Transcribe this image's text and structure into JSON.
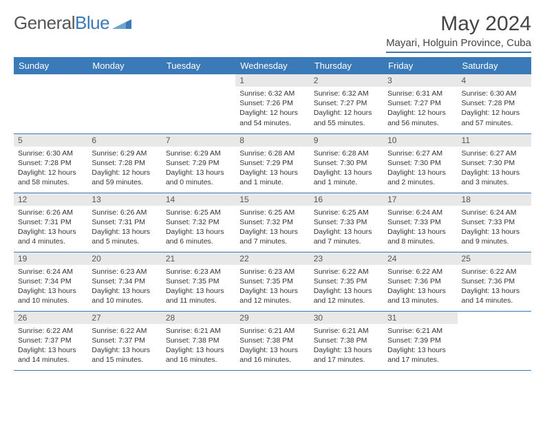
{
  "logo": {
    "part1": "General",
    "part2": "Blue"
  },
  "title": "May 2024",
  "subtitle": "Mayari, Holguin Province, Cuba",
  "columns": [
    "Sunday",
    "Monday",
    "Tuesday",
    "Wednesday",
    "Thursday",
    "Friday",
    "Saturday"
  ],
  "colors": {
    "accent": "#3a7ab8",
    "header_bg": "#3a7ab8",
    "header_fg": "#ffffff",
    "daynum_bg": "#e8e8e8",
    "text": "#333333",
    "background": "#ffffff"
  },
  "typography": {
    "body_font": "Arial",
    "title_size_pt": 22,
    "cell_size_pt": 8
  },
  "layout": {
    "cols": 7,
    "rows": 5,
    "first_weekday_index": 3
  },
  "weeks": [
    [
      {
        "empty": true
      },
      {
        "empty": true
      },
      {
        "empty": true
      },
      {
        "n": "1",
        "sr": "Sunrise: 6:32 AM",
        "ss": "Sunset: 7:26 PM",
        "dl1": "Daylight: 12 hours",
        "dl2": "and 54 minutes."
      },
      {
        "n": "2",
        "sr": "Sunrise: 6:32 AM",
        "ss": "Sunset: 7:27 PM",
        "dl1": "Daylight: 12 hours",
        "dl2": "and 55 minutes."
      },
      {
        "n": "3",
        "sr": "Sunrise: 6:31 AM",
        "ss": "Sunset: 7:27 PM",
        "dl1": "Daylight: 12 hours",
        "dl2": "and 56 minutes."
      },
      {
        "n": "4",
        "sr": "Sunrise: 6:30 AM",
        "ss": "Sunset: 7:28 PM",
        "dl1": "Daylight: 12 hours",
        "dl2": "and 57 minutes."
      }
    ],
    [
      {
        "n": "5",
        "sr": "Sunrise: 6:30 AM",
        "ss": "Sunset: 7:28 PM",
        "dl1": "Daylight: 12 hours",
        "dl2": "and 58 minutes."
      },
      {
        "n": "6",
        "sr": "Sunrise: 6:29 AM",
        "ss": "Sunset: 7:28 PM",
        "dl1": "Daylight: 12 hours",
        "dl2": "and 59 minutes."
      },
      {
        "n": "7",
        "sr": "Sunrise: 6:29 AM",
        "ss": "Sunset: 7:29 PM",
        "dl1": "Daylight: 13 hours",
        "dl2": "and 0 minutes."
      },
      {
        "n": "8",
        "sr": "Sunrise: 6:28 AM",
        "ss": "Sunset: 7:29 PM",
        "dl1": "Daylight: 13 hours",
        "dl2": "and 1 minute."
      },
      {
        "n": "9",
        "sr": "Sunrise: 6:28 AM",
        "ss": "Sunset: 7:30 PM",
        "dl1": "Daylight: 13 hours",
        "dl2": "and 1 minute."
      },
      {
        "n": "10",
        "sr": "Sunrise: 6:27 AM",
        "ss": "Sunset: 7:30 PM",
        "dl1": "Daylight: 13 hours",
        "dl2": "and 2 minutes."
      },
      {
        "n": "11",
        "sr": "Sunrise: 6:27 AM",
        "ss": "Sunset: 7:30 PM",
        "dl1": "Daylight: 13 hours",
        "dl2": "and 3 minutes."
      }
    ],
    [
      {
        "n": "12",
        "sr": "Sunrise: 6:26 AM",
        "ss": "Sunset: 7:31 PM",
        "dl1": "Daylight: 13 hours",
        "dl2": "and 4 minutes."
      },
      {
        "n": "13",
        "sr": "Sunrise: 6:26 AM",
        "ss": "Sunset: 7:31 PM",
        "dl1": "Daylight: 13 hours",
        "dl2": "and 5 minutes."
      },
      {
        "n": "14",
        "sr": "Sunrise: 6:25 AM",
        "ss": "Sunset: 7:32 PM",
        "dl1": "Daylight: 13 hours",
        "dl2": "and 6 minutes."
      },
      {
        "n": "15",
        "sr": "Sunrise: 6:25 AM",
        "ss": "Sunset: 7:32 PM",
        "dl1": "Daylight: 13 hours",
        "dl2": "and 7 minutes."
      },
      {
        "n": "16",
        "sr": "Sunrise: 6:25 AM",
        "ss": "Sunset: 7:33 PM",
        "dl1": "Daylight: 13 hours",
        "dl2": "and 7 minutes."
      },
      {
        "n": "17",
        "sr": "Sunrise: 6:24 AM",
        "ss": "Sunset: 7:33 PM",
        "dl1": "Daylight: 13 hours",
        "dl2": "and 8 minutes."
      },
      {
        "n": "18",
        "sr": "Sunrise: 6:24 AM",
        "ss": "Sunset: 7:33 PM",
        "dl1": "Daylight: 13 hours",
        "dl2": "and 9 minutes."
      }
    ],
    [
      {
        "n": "19",
        "sr": "Sunrise: 6:24 AM",
        "ss": "Sunset: 7:34 PM",
        "dl1": "Daylight: 13 hours",
        "dl2": "and 10 minutes."
      },
      {
        "n": "20",
        "sr": "Sunrise: 6:23 AM",
        "ss": "Sunset: 7:34 PM",
        "dl1": "Daylight: 13 hours",
        "dl2": "and 10 minutes."
      },
      {
        "n": "21",
        "sr": "Sunrise: 6:23 AM",
        "ss": "Sunset: 7:35 PM",
        "dl1": "Daylight: 13 hours",
        "dl2": "and 11 minutes."
      },
      {
        "n": "22",
        "sr": "Sunrise: 6:23 AM",
        "ss": "Sunset: 7:35 PM",
        "dl1": "Daylight: 13 hours",
        "dl2": "and 12 minutes."
      },
      {
        "n": "23",
        "sr": "Sunrise: 6:22 AM",
        "ss": "Sunset: 7:35 PM",
        "dl1": "Daylight: 13 hours",
        "dl2": "and 12 minutes."
      },
      {
        "n": "24",
        "sr": "Sunrise: 6:22 AM",
        "ss": "Sunset: 7:36 PM",
        "dl1": "Daylight: 13 hours",
        "dl2": "and 13 minutes."
      },
      {
        "n": "25",
        "sr": "Sunrise: 6:22 AM",
        "ss": "Sunset: 7:36 PM",
        "dl1": "Daylight: 13 hours",
        "dl2": "and 14 minutes."
      }
    ],
    [
      {
        "n": "26",
        "sr": "Sunrise: 6:22 AM",
        "ss": "Sunset: 7:37 PM",
        "dl1": "Daylight: 13 hours",
        "dl2": "and 14 minutes."
      },
      {
        "n": "27",
        "sr": "Sunrise: 6:22 AM",
        "ss": "Sunset: 7:37 PM",
        "dl1": "Daylight: 13 hours",
        "dl2": "and 15 minutes."
      },
      {
        "n": "28",
        "sr": "Sunrise: 6:21 AM",
        "ss": "Sunset: 7:38 PM",
        "dl1": "Daylight: 13 hours",
        "dl2": "and 16 minutes."
      },
      {
        "n": "29",
        "sr": "Sunrise: 6:21 AM",
        "ss": "Sunset: 7:38 PM",
        "dl1": "Daylight: 13 hours",
        "dl2": "and 16 minutes."
      },
      {
        "n": "30",
        "sr": "Sunrise: 6:21 AM",
        "ss": "Sunset: 7:38 PM",
        "dl1": "Daylight: 13 hours",
        "dl2": "and 17 minutes."
      },
      {
        "n": "31",
        "sr": "Sunrise: 6:21 AM",
        "ss": "Sunset: 7:39 PM",
        "dl1": "Daylight: 13 hours",
        "dl2": "and 17 minutes."
      },
      {
        "empty": true
      }
    ]
  ]
}
